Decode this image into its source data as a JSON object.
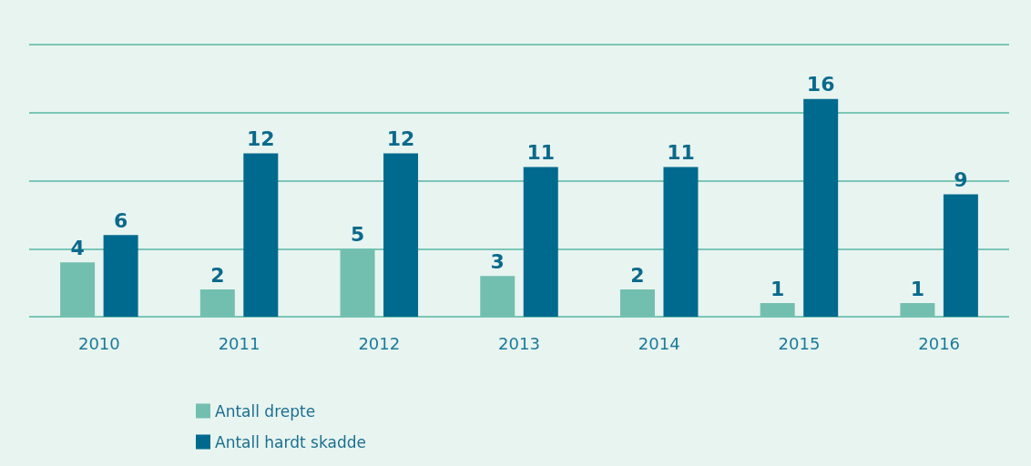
{
  "chart_data": {
    "type": "bar",
    "categories": [
      "2010",
      "2011",
      "2012",
      "2013",
      "2014",
      "2015",
      "2016"
    ],
    "series": [
      {
        "name": "Antall drepte",
        "color": "#72bfb0",
        "values": [
          4,
          2,
          5,
          3,
          2,
          1,
          1
        ]
      },
      {
        "name": "Antall hardt skadde",
        "color": "#006a8e",
        "values": [
          6,
          12,
          12,
          11,
          11,
          16,
          9
        ]
      }
    ],
    "ylim": [
      0,
      20
    ],
    "yticks": [
      {
        "value": 0,
        "label": null
      },
      {
        "value": 5,
        "label": null
      },
      {
        "value": 10,
        "label": null
      },
      {
        "value": 15,
        "label": null
      },
      {
        "value": 20,
        "label": null
      }
    ],
    "tick_labels": "x",
    "grid": "y",
    "legend": "bottom",
    "data_labels": true
  }
}
